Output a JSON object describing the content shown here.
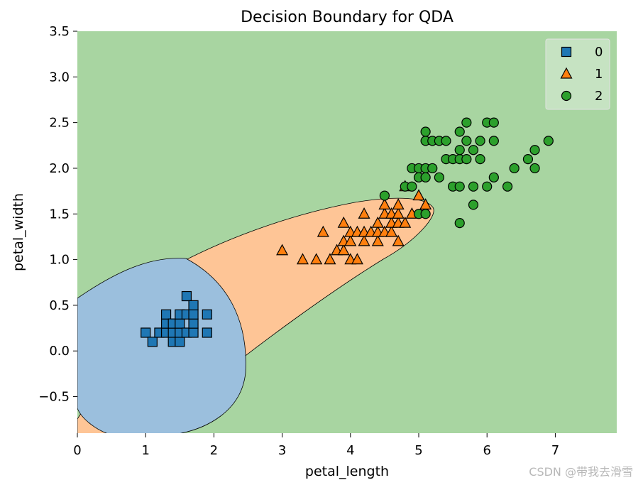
{
  "chart_data": {
    "type": "scatter",
    "title": "Decision Boundary for QDA",
    "xlabel": "petal_length",
    "ylabel": "petal_width",
    "xlim": [
      0,
      7.9
    ],
    "ylim": [
      -0.9,
      3.5
    ],
    "xticks": [
      "0",
      "1",
      "2",
      "3",
      "4",
      "5",
      "6",
      "7"
    ],
    "yticks": [
      "−0.5",
      "0.0",
      "0.5",
      "1.0",
      "1.5",
      "2.0",
      "2.5",
      "3.0",
      "3.5"
    ],
    "xtick_values": [
      0,
      1,
      2,
      3,
      4,
      5,
      6,
      7
    ],
    "ytick_values": [
      -0.5,
      0.0,
      0.5,
      1.0,
      1.5,
      2.0,
      2.5,
      3.0,
      3.5
    ],
    "legend_position": "top-right",
    "regions": [
      {
        "class": "0",
        "color": "#9bbfdd"
      },
      {
        "class": "1",
        "color": "#fec596"
      },
      {
        "class": "2",
        "color": "#a8d5a1"
      }
    ],
    "series": [
      {
        "name": "0",
        "marker": "square",
        "color": "#1f77b4",
        "points": [
          [
            1.0,
            0.2
          ],
          [
            1.1,
            0.1
          ],
          [
            1.2,
            0.2
          ],
          [
            1.3,
            0.2
          ],
          [
            1.3,
            0.3
          ],
          [
            1.3,
            0.4
          ],
          [
            1.4,
            0.1
          ],
          [
            1.4,
            0.2
          ],
          [
            1.4,
            0.3
          ],
          [
            1.5,
            0.1
          ],
          [
            1.5,
            0.2
          ],
          [
            1.5,
            0.3
          ],
          [
            1.5,
            0.4
          ],
          [
            1.6,
            0.2
          ],
          [
            1.6,
            0.4
          ],
          [
            1.6,
            0.6
          ],
          [
            1.7,
            0.2
          ],
          [
            1.7,
            0.3
          ],
          [
            1.7,
            0.4
          ],
          [
            1.7,
            0.5
          ],
          [
            1.9,
            0.2
          ],
          [
            1.9,
            0.4
          ]
        ]
      },
      {
        "name": "1",
        "marker": "triangle",
        "color": "#ff7f0e",
        "points": [
          [
            3.0,
            1.1
          ],
          [
            3.3,
            1.0
          ],
          [
            3.5,
            1.0
          ],
          [
            3.6,
            1.3
          ],
          [
            3.7,
            1.0
          ],
          [
            3.8,
            1.1
          ],
          [
            3.9,
            1.1
          ],
          [
            3.9,
            1.2
          ],
          [
            3.9,
            1.4
          ],
          [
            4.0,
            1.0
          ],
          [
            4.0,
            1.2
          ],
          [
            4.0,
            1.3
          ],
          [
            4.1,
            1.0
          ],
          [
            4.1,
            1.3
          ],
          [
            4.2,
            1.2
          ],
          [
            4.2,
            1.3
          ],
          [
            4.2,
            1.5
          ],
          [
            4.3,
            1.3
          ],
          [
            4.4,
            1.2
          ],
          [
            4.4,
            1.3
          ],
          [
            4.4,
            1.4
          ],
          [
            4.5,
            1.3
          ],
          [
            4.5,
            1.5
          ],
          [
            4.5,
            1.6
          ],
          [
            4.6,
            1.3
          ],
          [
            4.6,
            1.4
          ],
          [
            4.6,
            1.5
          ],
          [
            4.7,
            1.2
          ],
          [
            4.7,
            1.4
          ],
          [
            4.7,
            1.5
          ],
          [
            4.7,
            1.6
          ],
          [
            4.8,
            1.4
          ],
          [
            4.8,
            1.8
          ],
          [
            4.9,
            1.5
          ],
          [
            5.0,
            1.7
          ],
          [
            5.1,
            1.6
          ]
        ]
      },
      {
        "name": "2",
        "marker": "circle",
        "color": "#2ca02c",
        "points": [
          [
            4.5,
            1.7
          ],
          [
            4.8,
            1.8
          ],
          [
            4.9,
            1.8
          ],
          [
            4.9,
            2.0
          ],
          [
            5.0,
            1.5
          ],
          [
            5.0,
            1.9
          ],
          [
            5.0,
            2.0
          ],
          [
            5.1,
            1.5
          ],
          [
            5.1,
            1.9
          ],
          [
            5.1,
            2.0
          ],
          [
            5.1,
            2.3
          ],
          [
            5.1,
            2.4
          ],
          [
            5.2,
            2.0
          ],
          [
            5.2,
            2.3
          ],
          [
            5.3,
            1.9
          ],
          [
            5.3,
            2.3
          ],
          [
            5.4,
            2.1
          ],
          [
            5.4,
            2.3
          ],
          [
            5.5,
            1.8
          ],
          [
            5.5,
            2.1
          ],
          [
            5.6,
            1.4
          ],
          [
            5.6,
            1.8
          ],
          [
            5.6,
            2.1
          ],
          [
            5.6,
            2.2
          ],
          [
            5.6,
            2.4
          ],
          [
            5.7,
            2.1
          ],
          [
            5.7,
            2.3
          ],
          [
            5.7,
            2.5
          ],
          [
            5.8,
            1.6
          ],
          [
            5.8,
            1.8
          ],
          [
            5.8,
            2.2
          ],
          [
            5.9,
            2.1
          ],
          [
            5.9,
            2.3
          ],
          [
            6.0,
            1.8
          ],
          [
            6.0,
            2.5
          ],
          [
            6.1,
            1.9
          ],
          [
            6.1,
            2.3
          ],
          [
            6.1,
            2.5
          ],
          [
            6.3,
            1.8
          ],
          [
            6.4,
            2.0
          ],
          [
            6.6,
            2.1
          ],
          [
            6.7,
            2.0
          ],
          [
            6.7,
            2.2
          ],
          [
            6.9,
            2.3
          ]
        ]
      }
    ]
  },
  "watermark": "CSDN @带我去滑雪"
}
